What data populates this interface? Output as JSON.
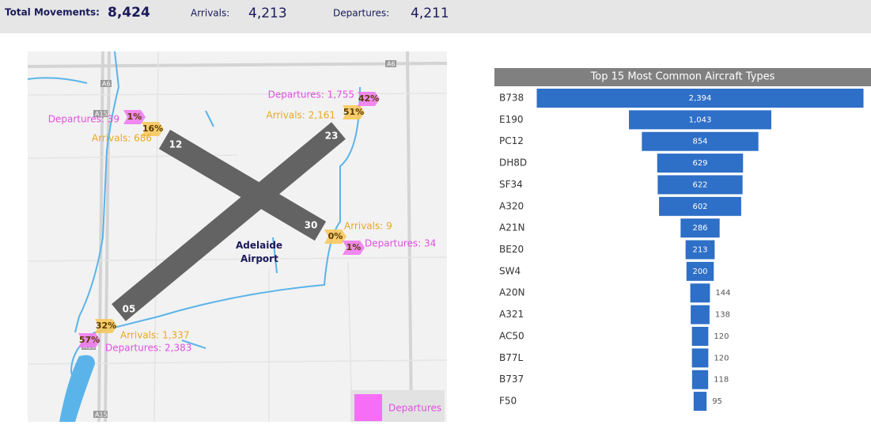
{
  "header": {
    "total_label": "Total Movements:",
    "total_value": "8,424",
    "arrivals_label": "Arrivals:",
    "arrivals_value": "4,213",
    "departures_label": "Departures:",
    "departures_value": "4,211"
  },
  "map": {
    "airport_label": "Adelaide Airport",
    "legend_label": "Departures",
    "road_labels": [
      "A6",
      "A6",
      "A15",
      "A15",
      "A15"
    ],
    "runway_ends": [
      {
        "runway": "12",
        "arrivals_pct": "16%",
        "departures_pct": "1%",
        "arrivals_label": "Arrivals: 686",
        "departures_label": "Departures: 39"
      },
      {
        "runway": "23",
        "arrivals_pct": "51%",
        "departures_pct": "42%",
        "arrivals_label": "Arrivals: 2,161",
        "departures_label": "Departures: 1,755"
      },
      {
        "runway": "30",
        "arrivals_pct": "0%",
        "departures_pct": "1%",
        "arrivals_label": "Arrivals: 9",
        "departures_label": "Departures: 34"
      },
      {
        "runway": "05",
        "arrivals_pct": "32%",
        "departures_pct": "57%",
        "arrivals_label": "Arrivals: 1,337",
        "departures_label": "Departures: 2,383"
      }
    ]
  },
  "chart_data": {
    "type": "funnel",
    "title": "Top 15 Most Common Aircraft Types",
    "color": "#2e6fc7",
    "categories": [
      "B738",
      "E190",
      "PC12",
      "DH8D",
      "SF34",
      "A320",
      "A21N",
      "BE20",
      "SW4",
      "A20N",
      "A321",
      "AC50",
      "B77L",
      "B737",
      "F50"
    ],
    "values": [
      2394,
      1043,
      854,
      629,
      622,
      602,
      286,
      213,
      200,
      144,
      138,
      120,
      120,
      118,
      95
    ],
    "value_labels": [
      "2,394",
      "1,043",
      "854",
      "629",
      "622",
      "602",
      "286",
      "213",
      "200",
      "144",
      "138",
      "120",
      "120",
      "118",
      "95"
    ]
  }
}
